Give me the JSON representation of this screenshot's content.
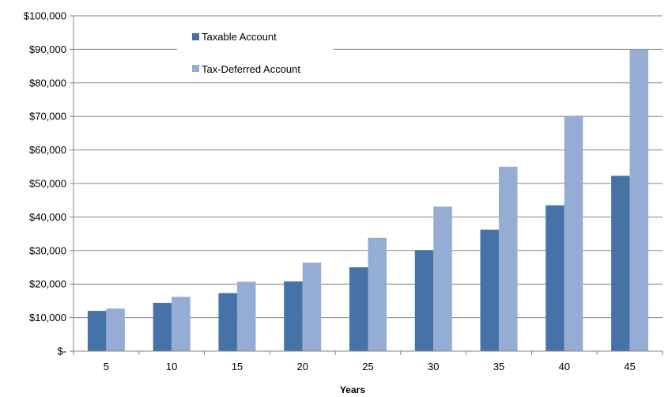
{
  "chart_data": {
    "type": "bar",
    "title": "",
    "xlabel": "Years",
    "ylabel": "",
    "categories": [
      "5",
      "10",
      "15",
      "20",
      "25",
      "30",
      "35",
      "40",
      "45"
    ],
    "series": [
      {
        "name": "Taxable Account",
        "color": "#4572A7",
        "values": [
          12000,
          14400,
          17300,
          20800,
          25000,
          30100,
          36200,
          43500,
          52300
        ]
      },
      {
        "name": "Tax-Deferred Account",
        "color": "#95ACD4",
        "values": [
          12700,
          16200,
          20700,
          26400,
          33800,
          43100,
          55000,
          70200,
          89900
        ]
      }
    ],
    "ylim": [
      0,
      100000
    ],
    "y_ticks": [
      0,
      10000,
      20000,
      30000,
      40000,
      50000,
      60000,
      70000,
      80000,
      90000,
      100000
    ],
    "y_tick_labels": [
      "$-",
      "$10,000",
      "$20,000",
      "$30,000",
      "$40,000",
      "$50,000",
      "$60,000",
      "$70,000",
      "$80,000",
      "$90,000",
      "$100,000"
    ],
    "grid": true,
    "legend_position": "top-left inside"
  }
}
